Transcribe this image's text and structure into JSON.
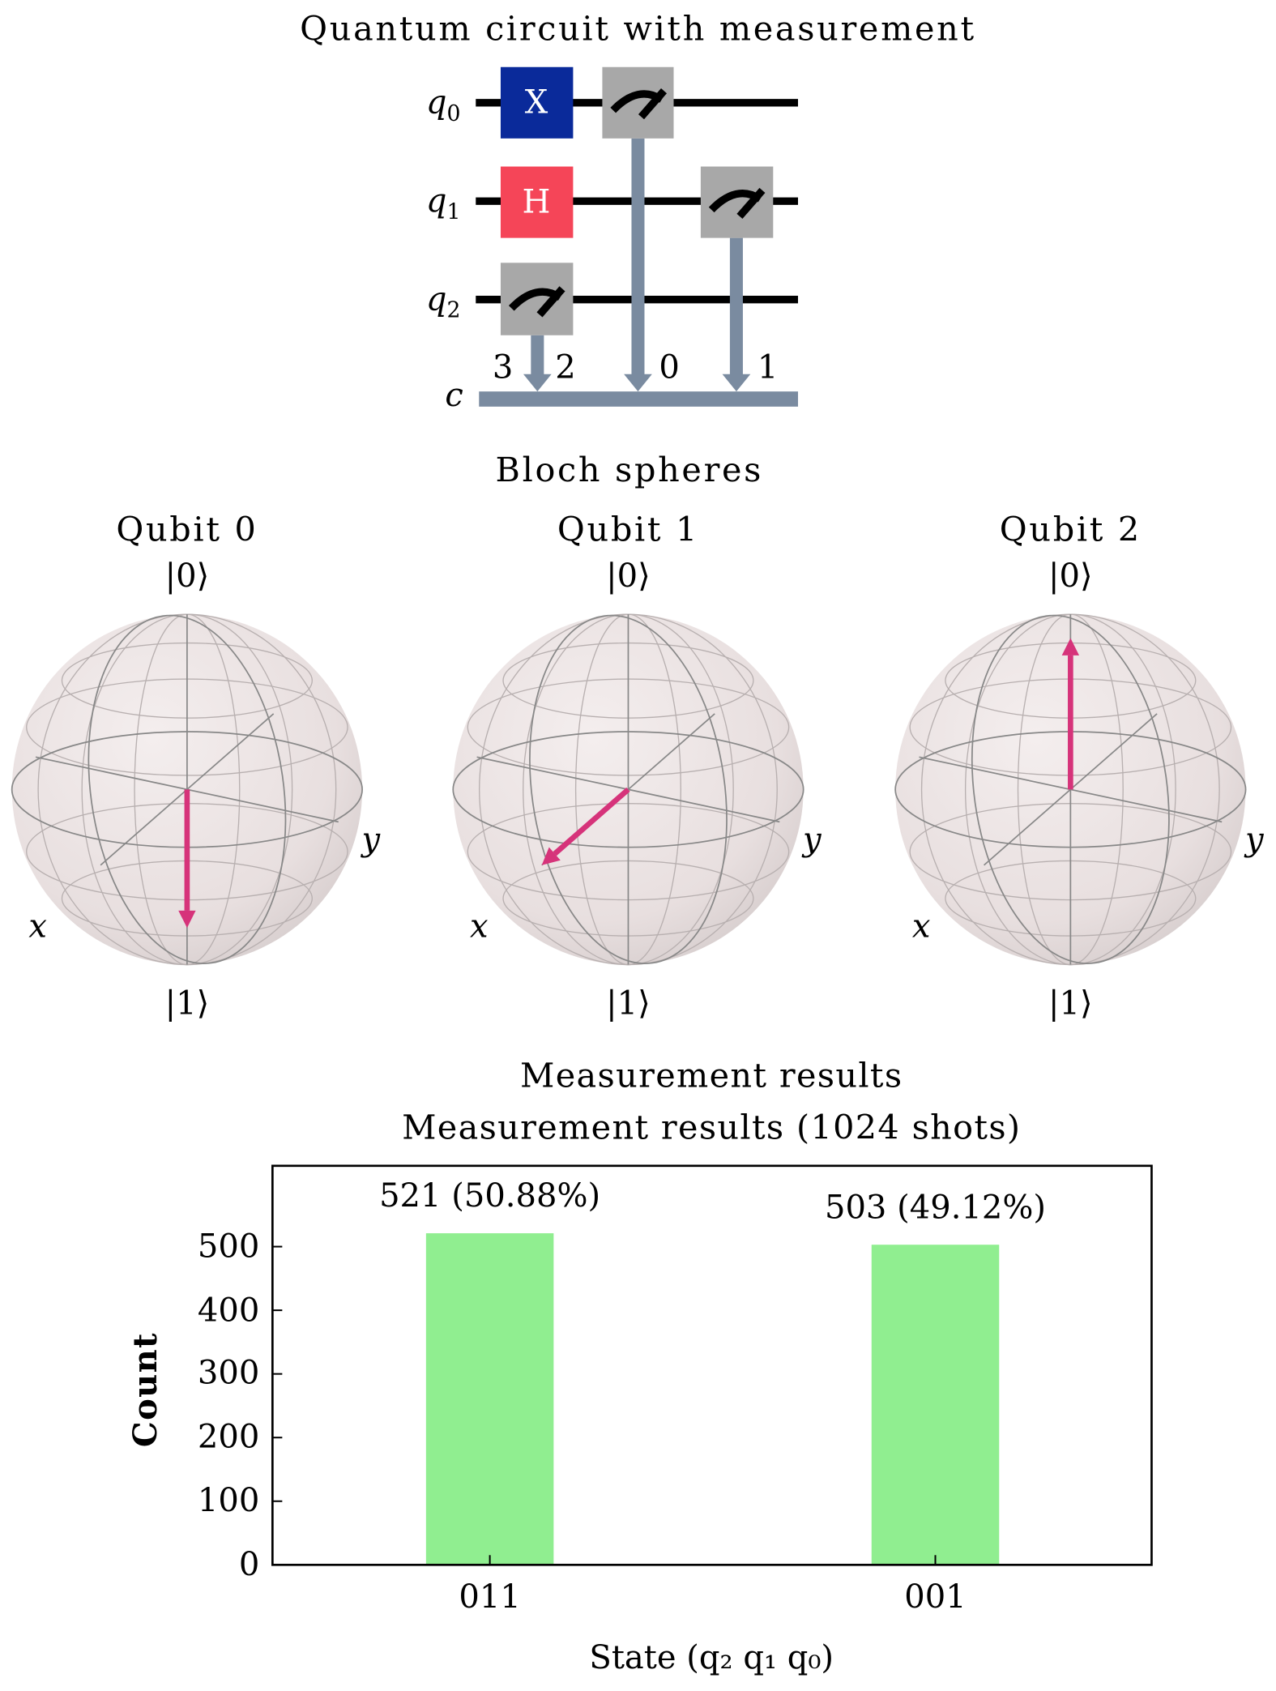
{
  "circuit": {
    "title": "Quantum circuit with measurement",
    "qubits": [
      "q",
      "q",
      "q"
    ],
    "qubit_indices": [
      "0",
      "1",
      "2"
    ],
    "classical_label": "c",
    "gates": [
      {
        "label": "X",
        "qubit": 0,
        "color": "#0a2a9a"
      },
      {
        "label": "H",
        "qubit": 1,
        "color": "#f54558"
      }
    ],
    "measure_color": "#a8a8a8",
    "classical_color": "#7a8ba0",
    "classical_bits": [
      "3",
      "2",
      "0",
      "1"
    ]
  },
  "bloch": {
    "title": "Bloch spheres",
    "ket0": "|0⟩",
    "ket1": "|1⟩",
    "x_label": "x",
    "y_label": "y",
    "arrow_color": "#d6337a",
    "qubits": [
      {
        "title": "Qubit 0",
        "state": "|1⟩"
      },
      {
        "title": "Qubit 1",
        "state": "+x"
      },
      {
        "title": "Qubit 2",
        "state": "|0⟩"
      }
    ]
  },
  "chart_data": {
    "type": "bar",
    "title": "Measurement results",
    "subtitle": "Measurement results (1024 shots)",
    "categories": [
      "011",
      "001"
    ],
    "values": [
      521,
      503
    ],
    "data_labels": [
      "521 (50.88%)",
      "503 (49.12%)"
    ],
    "xlabel": "State (q₂ q₁ q₀)",
    "ylabel": "Count",
    "ylim": [
      0,
      627
    ],
    "yticks": [
      "0",
      "100",
      "200",
      "300",
      "400",
      "500"
    ],
    "bar_color": "#90ee90",
    "grid": false
  }
}
